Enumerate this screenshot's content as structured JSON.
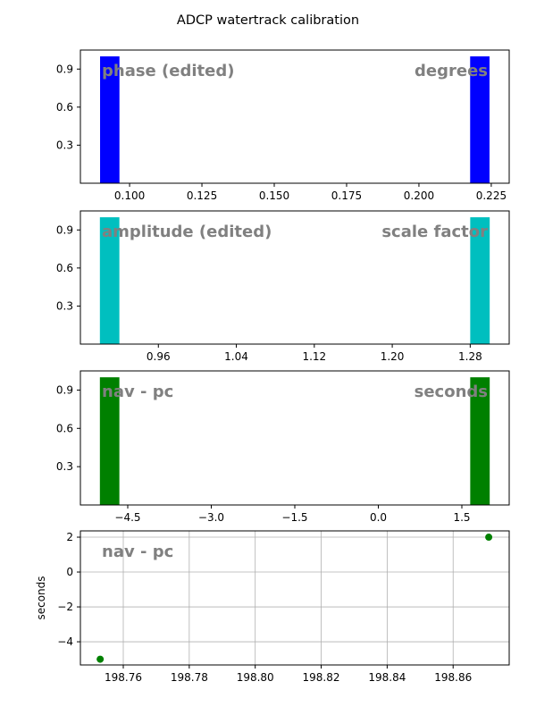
{
  "title": "ADCP watertrack calibration",
  "chart_data": [
    {
      "type": "histogram",
      "color": "#0000ff",
      "annotations": [
        "phase (edited)",
        "degrees"
      ],
      "bins": [
        0.0898,
        0.0965,
        0.1033,
        0.11,
        0.1167,
        0.1235,
        0.1302,
        0.1369,
        0.1436,
        0.1504,
        0.1571,
        0.1638,
        0.1706,
        0.1773,
        0.184,
        0.1908,
        0.1975,
        0.2042,
        0.2109,
        0.2177,
        0.2244
      ],
      "counts": [
        1,
        0,
        0,
        0,
        0,
        0,
        0,
        0,
        0,
        0,
        0,
        0,
        0,
        0,
        0,
        0,
        0,
        0,
        0,
        1
      ],
      "xlim": [
        0.083,
        0.2312
      ],
      "xticks": [
        {
          "value": 0.1,
          "label": "0.100"
        },
        0.125,
        {
          "value": 0.15,
          "label": "0.150"
        },
        0.175,
        {
          "value": 0.2,
          "label": "0.200"
        },
        0.225
      ],
      "ylim": [
        0,
        1.05
      ],
      "yticks": [
        0.3,
        0.6,
        0.9
      ]
    },
    {
      "type": "histogram",
      "color": "#00bfbf",
      "annotations": [
        "amplitude (edited)",
        "scale factor"
      ],
      "bins": [
        0.9,
        0.92,
        0.94,
        0.96,
        0.98,
        1.0,
        1.02,
        1.04,
        1.06,
        1.08,
        1.1,
        1.12,
        1.14,
        1.16,
        1.18,
        1.2,
        1.22,
        1.24,
        1.26,
        1.28,
        1.3
      ],
      "counts": [
        1,
        0,
        0,
        0,
        0,
        0,
        0,
        0,
        0,
        0,
        0,
        0,
        0,
        0,
        0,
        0,
        0,
        0,
        0,
        1
      ],
      "xlim": [
        0.88,
        1.32
      ],
      "xticks": [
        0.96,
        1.04,
        1.12,
        {
          "value": 1.2,
          "label": "1.20"
        },
        1.28
      ],
      "ylim": [
        0,
        1.05
      ],
      "yticks": [
        0.3,
        0.6,
        0.9
      ]
    },
    {
      "type": "histogram",
      "color": "#008000",
      "annotations": [
        "nav - pc",
        "seconds"
      ],
      "bins": [
        -5,
        -4.65,
        -4.3,
        -3.95,
        -3.6,
        -3.25,
        -2.9,
        -2.55,
        -2.2,
        -1.85,
        -1.5,
        -1.15,
        -0.8,
        -0.45,
        -0.1,
        0.25,
        0.6,
        0.95,
        1.3,
        1.65,
        2.0
      ],
      "counts": [
        1,
        0,
        0,
        0,
        0,
        0,
        0,
        0,
        0,
        0,
        0,
        0,
        0,
        0,
        0,
        0,
        0,
        0,
        0,
        1
      ],
      "xlim": [
        -5.35,
        2.35
      ],
      "xticks": [
        {
          "value": -4.5,
          "label": "−4.5"
        },
        {
          "value": -3,
          "label": "−3.0"
        },
        {
          "value": -1.5,
          "label": "−1.5"
        },
        {
          "value": 0,
          "label": "0.0"
        },
        1.5
      ],
      "ylim": [
        0,
        1.05
      ],
      "yticks": [
        0.3,
        0.6,
        0.9
      ]
    },
    {
      "type": "scatter",
      "color": "#008000",
      "grid": true,
      "annotations": [
        "nav - pc"
      ],
      "ylabel": "seconds",
      "x": [
        198.753,
        198.8708
      ],
      "values": [
        -5,
        2
      ],
      "xlim": [
        198.747,
        198.877
      ],
      "xticks": [
        198.76,
        198.78,
        {
          "value": 198.8,
          "label": "198.80"
        },
        198.82,
        198.84,
        198.86
      ],
      "ylim": [
        -5.33,
        2.36
      ],
      "yticks": [
        {
          "value": -4,
          "label": "−4"
        },
        {
          "value": -2,
          "label": "−2"
        },
        0,
        2
      ]
    }
  ]
}
